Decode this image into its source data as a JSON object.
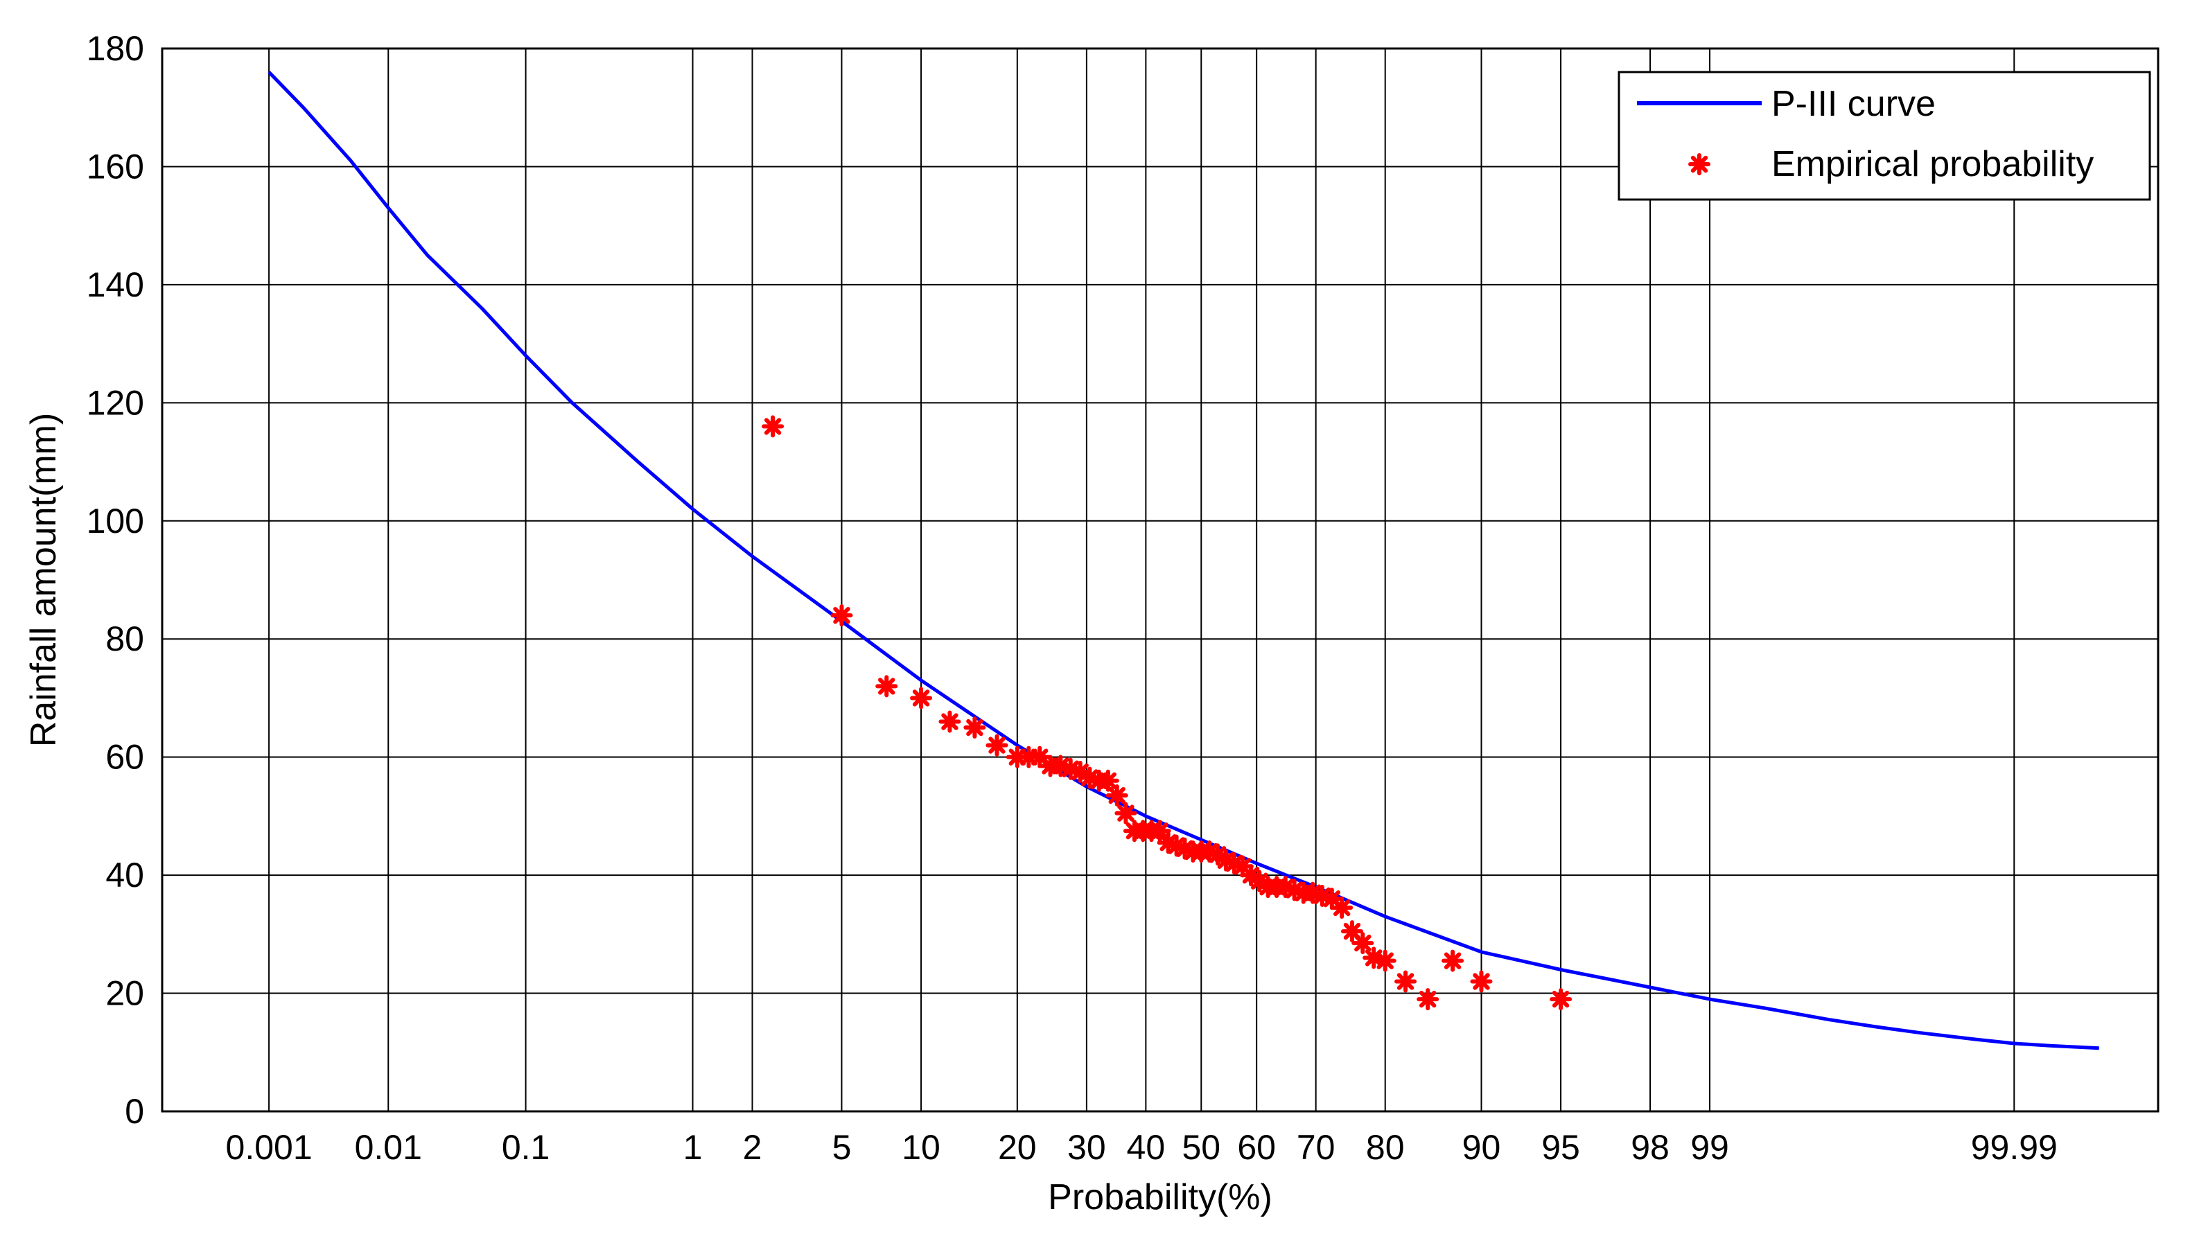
{
  "chart_data": {
    "type": "scatter",
    "title": "",
    "xlabel": "Probability(%)",
    "ylabel": "Rainfall amount(mm)",
    "x_scale": "normal-probability",
    "xlim": [
      0.0001,
      99.9994
    ],
    "ylim": [
      0,
      180
    ],
    "grid": true,
    "x_ticks": [
      0.001,
      0.01,
      0.1,
      1,
      2,
      5,
      10,
      20,
      30,
      40,
      50,
      60,
      70,
      80,
      90,
      95,
      98,
      99,
      99.99
    ],
    "x_tick_labels": [
      "0.001",
      "0.01",
      "0.1",
      "1",
      "2",
      "5",
      "10",
      "20",
      "30",
      "40",
      "50",
      "60",
      "70",
      "80",
      "90",
      "95",
      "98",
      "99",
      "99.99"
    ],
    "y_ticks": [
      0,
      20,
      40,
      60,
      80,
      100,
      120,
      140,
      160,
      180
    ],
    "y_tick_labels": [
      "0",
      "20",
      "40",
      "60",
      "80",
      "100",
      "120",
      "140",
      "160",
      "180"
    ],
    "legend_position": "top-right",
    "series": [
      {
        "name": "P-III curve",
        "kind": "line",
        "color": "#0000ff",
        "x": [
          0.001,
          0.002,
          0.005,
          0.01,
          0.02,
          0.05,
          0.1,
          0.2,
          0.5,
          1,
          2,
          5,
          10,
          20,
          30,
          40,
          50,
          60,
          70,
          80,
          90,
          95,
          98,
          99,
          99.5,
          99.8,
          99.9,
          99.95,
          99.98,
          99.99,
          99.995,
          99.998
        ],
        "y": [
          176,
          170,
          161,
          153,
          145,
          136,
          128,
          120,
          110,
          102,
          94,
          83,
          73,
          62,
          55,
          50,
          46,
          42,
          38,
          33,
          27,
          24,
          21,
          19,
          17.5,
          15.5,
          14.3,
          13.3,
          12.2,
          11.5,
          11.1,
          10.7
        ]
      },
      {
        "name": "Empirical probability",
        "kind": "scatter",
        "color": "#ff0000",
        "x": [
          2.5,
          5,
          7.5,
          10,
          12.5,
          15,
          17.5,
          20,
          21.5,
          23,
          24.5,
          26,
          27.5,
          29,
          30.5,
          32,
          33.5,
          35,
          36.5,
          38,
          39.5,
          41,
          42.5,
          44,
          45.5,
          47,
          48.5,
          50,
          51.5,
          53,
          54.5,
          56,
          57.5,
          59,
          60.5,
          62,
          63.5,
          65,
          66.5,
          68,
          69.5,
          71,
          72.5,
          74,
          75.5,
          77,
          78.5,
          80,
          82.5,
          85,
          87.5,
          90,
          95
        ],
        "y": [
          116,
          84,
          72,
          70,
          66,
          65,
          62,
          60,
          60,
          60,
          58.5,
          58.5,
          58,
          57.5,
          56.5,
          56,
          56,
          53.5,
          50.5,
          47.5,
          47.5,
          47.5,
          47.5,
          45.5,
          45,
          44.5,
          44,
          44,
          44,
          43.5,
          42.5,
          42,
          41.5,
          40,
          39,
          38,
          38,
          38,
          37.5,
          37,
          37,
          36.5,
          36,
          34.5,
          30.5,
          28.5,
          26,
          25.5,
          22,
          19,
          25.5,
          22,
          19
        ]
      }
    ]
  }
}
